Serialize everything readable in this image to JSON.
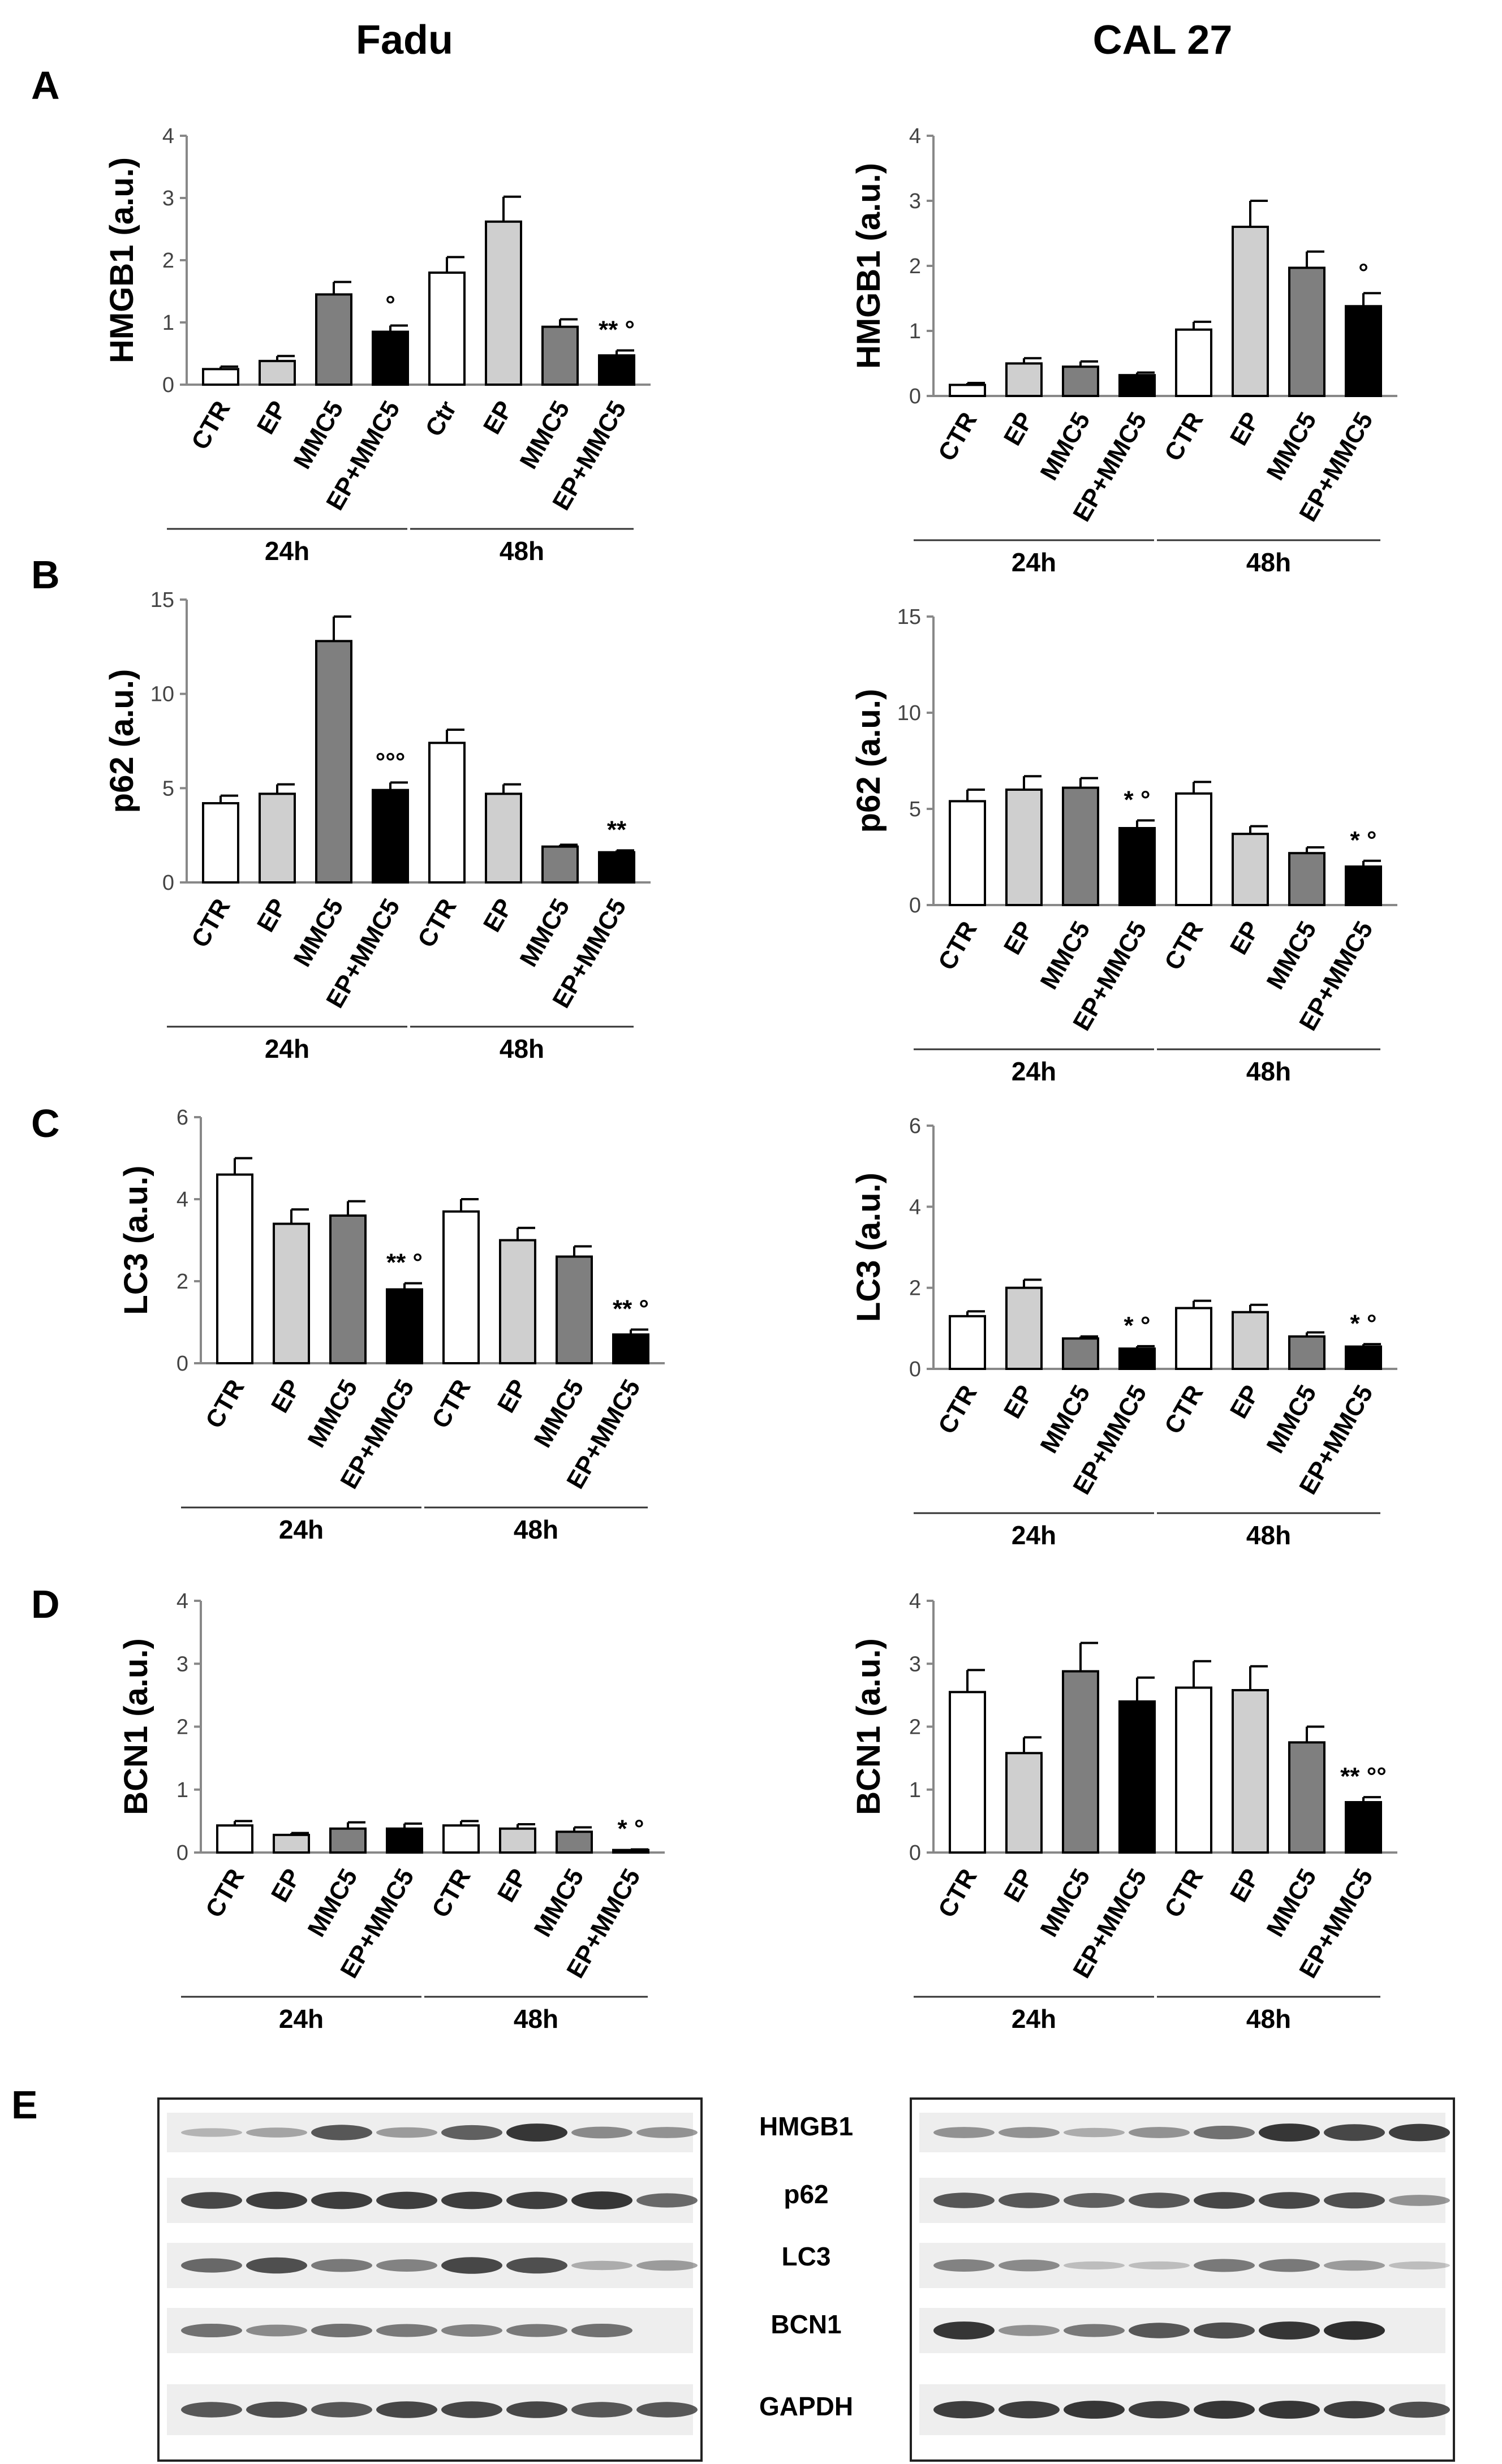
{
  "titles": {
    "left": "Fadu",
    "right": "CAL 27"
  },
  "panel_letters": [
    "A",
    "B",
    "C",
    "D",
    "E"
  ],
  "colors": {
    "CTR": "#ffffff",
    "EP": "#cfcfcf",
    "MMC5": "#7f7f7f",
    "EP+MMC5": "#000000"
  },
  "chart_data": [
    {
      "id": "A-fadu",
      "type": "bar",
      "cell": "Fadu",
      "panel": "A",
      "ylabel": "HMGB1 (a.u.)",
      "ylim": [
        0,
        4
      ],
      "yticks": [
        0,
        1,
        2,
        3,
        4
      ],
      "groups": [
        {
          "label": "24h",
          "categories": [
            "CTR",
            "EP",
            "MMC5",
            "EP+MMC5"
          ],
          "values": [
            0.25,
            0.38,
            1.45,
            0.85
          ],
          "errors": [
            0.04,
            0.08,
            0.2,
            0.1
          ],
          "annotations": [
            "",
            "",
            "",
            "°"
          ]
        },
        {
          "label": "48h",
          "categories": [
            "Ctr",
            "EP",
            "MMC5",
            "EP+MMC5"
          ],
          "values": [
            1.8,
            2.62,
            0.93,
            0.47
          ],
          "errors": [
            0.25,
            0.4,
            0.12,
            0.08
          ],
          "annotations": [
            "",
            "",
            "",
            "** °"
          ]
        }
      ]
    },
    {
      "id": "A-cal27",
      "type": "bar",
      "cell": "CAL 27",
      "panel": "A",
      "ylabel": "HMGB1 (a.u.)",
      "ylim": [
        0,
        4
      ],
      "yticks": [
        0,
        1,
        2,
        3,
        4
      ],
      "groups": [
        {
          "label": "24h",
          "categories": [
            "CTR",
            "EP",
            "MMC5",
            "EP+MMC5"
          ],
          "values": [
            0.17,
            0.5,
            0.45,
            0.32
          ],
          "errors": [
            0.03,
            0.08,
            0.08,
            0.04
          ],
          "annotations": [
            "",
            "",
            "",
            ""
          ]
        },
        {
          "label": "48h",
          "categories": [
            "CTR",
            "EP",
            "MMC5",
            "EP+MMC5"
          ],
          "values": [
            1.02,
            2.6,
            1.97,
            1.38
          ],
          "errors": [
            0.12,
            0.4,
            0.25,
            0.2
          ],
          "annotations": [
            "",
            "",
            "",
            "°"
          ]
        }
      ]
    },
    {
      "id": "B-fadu",
      "type": "bar",
      "cell": "Fadu",
      "panel": "B",
      "ylabel": "p62 (a.u.)",
      "ylim": [
        0,
        15
      ],
      "yticks": [
        0,
        5,
        10,
        15
      ],
      "groups": [
        {
          "label": "24h",
          "categories": [
            "CTR",
            "EP",
            "MMC5",
            "EP+MMC5"
          ],
          "values": [
            4.2,
            4.7,
            12.8,
            4.9
          ],
          "errors": [
            0.4,
            0.5,
            1.3,
            0.4
          ],
          "annotations": [
            "",
            "",
            "",
            "°°°"
          ]
        },
        {
          "label": "48h",
          "categories": [
            "CTR",
            "EP",
            "MMC5",
            "EP+MMC5"
          ],
          "values": [
            7.4,
            4.7,
            1.9,
            1.6
          ],
          "errors": [
            0.7,
            0.5,
            0.1,
            0.1
          ],
          "annotations": [
            "",
            "",
            "",
            "**"
          ]
        }
      ]
    },
    {
      "id": "B-cal27",
      "type": "bar",
      "cell": "CAL 27",
      "panel": "B",
      "ylabel": "p62 (a.u.)",
      "ylim": [
        0,
        15
      ],
      "yticks": [
        0,
        5,
        10,
        15
      ],
      "groups": [
        {
          "label": "24h",
          "categories": [
            "CTR",
            "EP",
            "MMC5",
            "EP+MMC5"
          ],
          "values": [
            5.4,
            6.0,
            6.1,
            4.0
          ],
          "errors": [
            0.6,
            0.7,
            0.5,
            0.4
          ],
          "annotations": [
            "",
            "",
            "",
            "* °"
          ]
        },
        {
          "label": "48h",
          "categories": [
            "CTR",
            "EP",
            "MMC5",
            "EP+MMC5"
          ],
          "values": [
            5.8,
            3.7,
            2.7,
            2.0
          ],
          "errors": [
            0.6,
            0.4,
            0.3,
            0.3
          ],
          "annotations": [
            "",
            "",
            "",
            "* °"
          ]
        }
      ]
    },
    {
      "id": "C-fadu",
      "type": "bar",
      "cell": "Fadu",
      "panel": "C",
      "ylabel": "LC3 (a.u.)",
      "ylim": [
        0,
        6
      ],
      "yticks": [
        0,
        2,
        4,
        6
      ],
      "groups": [
        {
          "label": "24h",
          "categories": [
            "CTR",
            "EP",
            "MMC5",
            "EP+MMC5"
          ],
          "values": [
            4.6,
            3.4,
            3.6,
            1.8
          ],
          "errors": [
            0.4,
            0.35,
            0.35,
            0.15
          ],
          "annotations": [
            "",
            "",
            "",
            "** °"
          ]
        },
        {
          "label": "48h",
          "categories": [
            "CTR",
            "EP",
            "MMC5",
            "EP+MMC5"
          ],
          "values": [
            3.7,
            3.0,
            2.6,
            0.7
          ],
          "errors": [
            0.3,
            0.3,
            0.25,
            0.12
          ],
          "annotations": [
            "",
            "",
            "",
            "** °"
          ]
        }
      ]
    },
    {
      "id": "C-cal27",
      "type": "bar",
      "cell": "CAL 27",
      "panel": "C",
      "ylabel": "LC3 (a.u.)",
      "ylim": [
        0,
        6
      ],
      "yticks": [
        0,
        2,
        4,
        6
      ],
      "groups": [
        {
          "label": "24h",
          "categories": [
            "CTR",
            "EP",
            "MMC5",
            "EP+MMC5"
          ],
          "values": [
            1.3,
            2.0,
            0.75,
            0.5
          ],
          "errors": [
            0.12,
            0.2,
            0.05,
            0.06
          ],
          "annotations": [
            "",
            "",
            "",
            "* °"
          ]
        },
        {
          "label": "48h",
          "categories": [
            "CTR",
            "EP",
            "MMC5",
            "EP+MMC5"
          ],
          "values": [
            1.5,
            1.4,
            0.8,
            0.55
          ],
          "errors": [
            0.18,
            0.18,
            0.1,
            0.06
          ],
          "annotations": [
            "",
            "",
            "",
            "* °"
          ]
        }
      ]
    },
    {
      "id": "D-fadu",
      "type": "bar",
      "cell": "Fadu",
      "panel": "D",
      "ylabel": "BCN1 (a.u.)",
      "ylim": [
        0,
        4
      ],
      "yticks": [
        0,
        1,
        2,
        3,
        4
      ],
      "groups": [
        {
          "label": "24h",
          "categories": [
            "CTR",
            "EP",
            "MMC5",
            "EP+MMC5"
          ],
          "values": [
            0.43,
            0.28,
            0.38,
            0.38
          ],
          "errors": [
            0.07,
            0.03,
            0.1,
            0.08
          ],
          "annotations": [
            "",
            "",
            "",
            ""
          ]
        },
        {
          "label": "48h",
          "categories": [
            "CTR",
            "EP",
            "MMC5",
            "EP+MMC5"
          ],
          "values": [
            0.43,
            0.38,
            0.33,
            0.04
          ],
          "errors": [
            0.07,
            0.07,
            0.07,
            0.01
          ],
          "annotations": [
            "",
            "",
            "",
            "* °"
          ]
        }
      ]
    },
    {
      "id": "D-cal27",
      "type": "bar",
      "cell": "CAL 27",
      "panel": "D",
      "ylabel": "BCN1 (a.u.)",
      "ylim": [
        0,
        4
      ],
      "yticks": [
        0,
        1,
        2,
        3,
        4
      ],
      "groups": [
        {
          "label": "24h",
          "categories": [
            "CTR",
            "EP",
            "MMC5",
            "EP+MMC5"
          ],
          "values": [
            2.55,
            1.58,
            2.88,
            2.4
          ],
          "errors": [
            0.35,
            0.25,
            0.45,
            0.38
          ],
          "annotations": [
            "",
            "",
            "",
            ""
          ]
        },
        {
          "label": "48h",
          "categories": [
            "CTR",
            "EP",
            "MMC5",
            "EP+MMC5"
          ],
          "values": [
            2.62,
            2.58,
            1.75,
            0.8
          ],
          "errors": [
            0.42,
            0.38,
            0.25,
            0.08
          ],
          "annotations": [
            "",
            "",
            "",
            "** °°"
          ]
        }
      ]
    }
  ],
  "blot": {
    "markers": [
      "HMGB1",
      "p62",
      "LC3",
      "BCN1",
      "GAPDH"
    ],
    "lanes": 8,
    "left_intensity": [
      [
        0.15,
        0.25,
        0.7,
        0.3,
        0.65,
        0.9,
        0.4,
        0.35
      ],
      [
        0.8,
        0.85,
        0.85,
        0.85,
        0.85,
        0.85,
        0.9,
        0.6
      ],
      [
        0.6,
        0.75,
        0.5,
        0.45,
        0.8,
        0.75,
        0.2,
        0.3
      ],
      [
        0.55,
        0.4,
        0.55,
        0.5,
        0.45,
        0.5,
        0.55,
        0.0
      ],
      [
        0.7,
        0.75,
        0.7,
        0.8,
        0.8,
        0.8,
        0.7,
        0.7
      ]
    ],
    "right_intensity": [
      [
        0.35,
        0.35,
        0.2,
        0.35,
        0.55,
        0.9,
        0.8,
        0.85
      ],
      [
        0.7,
        0.7,
        0.65,
        0.7,
        0.8,
        0.8,
        0.75,
        0.35
      ],
      [
        0.45,
        0.4,
        0.1,
        0.1,
        0.5,
        0.5,
        0.3,
        0.1
      ],
      [
        0.9,
        0.35,
        0.5,
        0.7,
        0.75,
        0.9,
        0.95,
        0.0
      ],
      [
        0.85,
        0.85,
        0.9,
        0.85,
        0.9,
        0.9,
        0.85,
        0.75
      ]
    ]
  }
}
